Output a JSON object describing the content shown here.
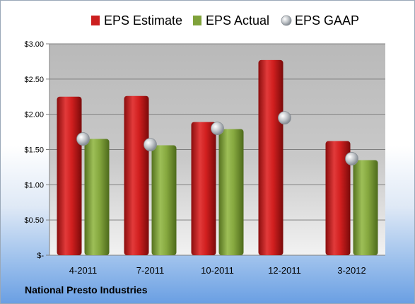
{
  "company": "National Presto Industries",
  "chart_data": {
    "type": "bar",
    "categories": [
      "4-2011",
      "7-2011",
      "10-2011",
      "12-2011",
      "3-2012"
    ],
    "series": [
      {
        "name": "EPS Estimate",
        "kind": "bar",
        "color": "#cc1f1f",
        "values": [
          2.25,
          2.26,
          1.89,
          2.77,
          1.62
        ]
      },
      {
        "name": "EPS Actual",
        "kind": "bar",
        "color": "#7fa23a",
        "values": [
          1.65,
          1.56,
          1.79,
          null,
          1.35
        ]
      },
      {
        "name": "EPS GAAP",
        "kind": "marker",
        "color": "#9aa0a8",
        "values": [
          1.65,
          1.57,
          1.8,
          1.95,
          1.37
        ]
      }
    ],
    "ylim": [
      0,
      3
    ],
    "yticks": [
      0,
      0.5,
      1.0,
      1.5,
      2.0,
      2.5,
      3.0
    ],
    "ytick_labels": [
      "$-",
      "$0.50",
      "$1.00",
      "$1.50",
      "$2.00",
      "$2.50",
      "$3.00"
    ],
    "grid": true,
    "legend_position": "top"
  }
}
